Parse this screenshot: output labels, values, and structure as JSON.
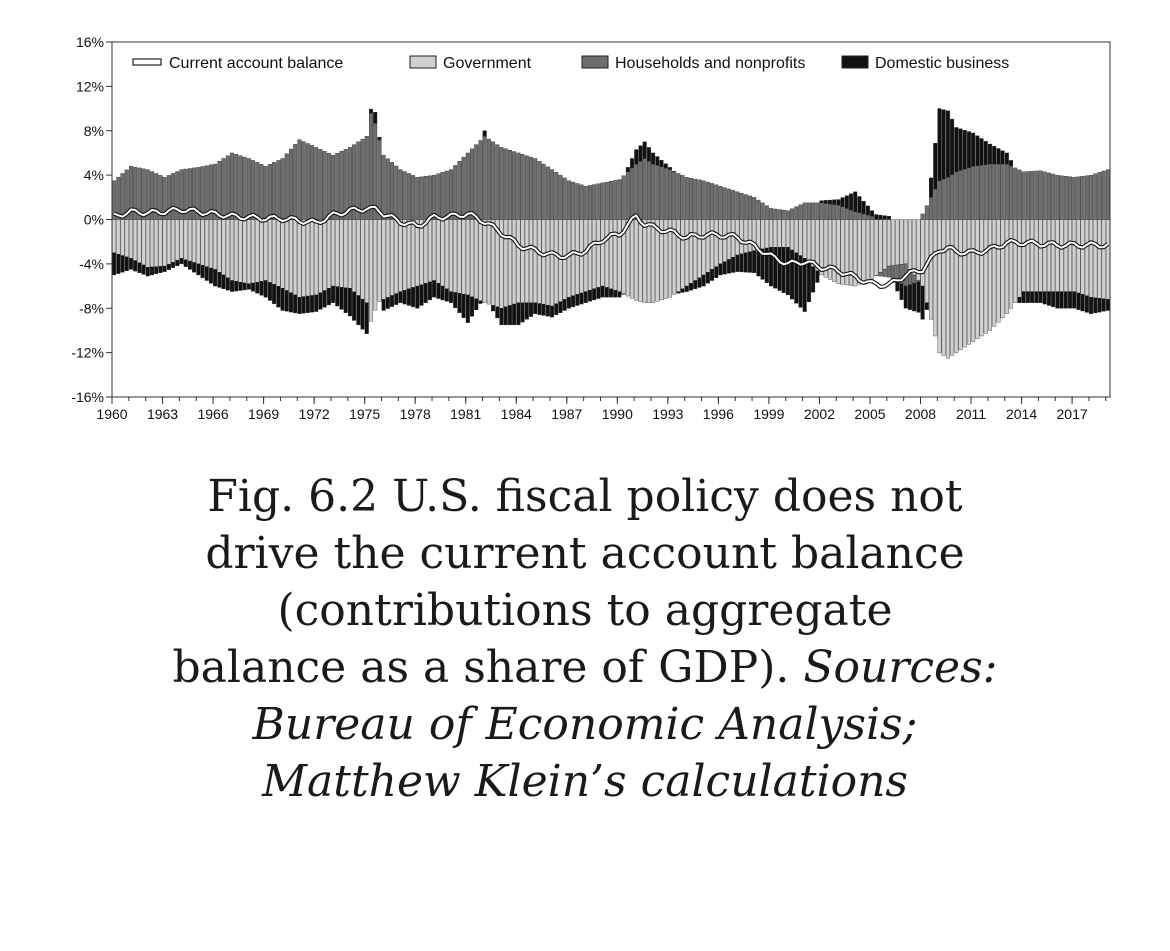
{
  "chart_data": {
    "type": "bar",
    "stacked": true,
    "ylim": [
      -16,
      16
    ],
    "xlim": [
      1960,
      2019.25
    ],
    "y_ticks": [
      "16%",
      "12%",
      "8%",
      "4%",
      "0%",
      "-4%",
      "-8%",
      "-12%",
      "-16%"
    ],
    "y_tick_values": [
      16,
      12,
      8,
      4,
      0,
      -4,
      -8,
      -12,
      -16
    ],
    "x_ticks": [
      "1960",
      "1963",
      "1966",
      "1969",
      "1972",
      "1975",
      "1978",
      "1981",
      "1984",
      "1987",
      "1990",
      "1993",
      "1996",
      "1999",
      "2002",
      "2005",
      "2008",
      "2011",
      "2014",
      "2017"
    ],
    "x_tick_values": [
      1960,
      1963,
      1966,
      1969,
      1972,
      1975,
      1978,
      1981,
      1984,
      1987,
      1990,
      1993,
      1996,
      1999,
      2002,
      2005,
      2008,
      2011,
      2014,
      2017
    ],
    "legend_position": "top",
    "legend": [
      {
        "label": "Current account balance",
        "kind": "line",
        "color": "#ffffff"
      },
      {
        "label": "Government",
        "kind": "bar",
        "color": "#d0d0d0"
      },
      {
        "label": "Households and nonprofits",
        "kind": "bar",
        "color": "#6e6e6e"
      },
      {
        "label": "Domestic business",
        "kind": "bar",
        "color": "#111111"
      }
    ],
    "anchors": {
      "years": [
        1960,
        1961,
        1962,
        1963,
        1964,
        1965,
        1966,
        1967,
        1968,
        1969,
        1970,
        1971,
        1972,
        1973,
        1974,
        1975,
        1975.3,
        1975.6,
        1976,
        1977,
        1978,
        1979,
        1980,
        1981,
        1982,
        1983,
        1984,
        1985,
        1986,
        1987,
        1988,
        1989,
        1990,
        1991,
        1991.5,
        1992,
        1993,
        1994,
        1995,
        1996,
        1997,
        1998,
        1999,
        2000,
        2001,
        2002,
        2003,
        2004,
        2005,
        2006,
        2007,
        2008,
        2009,
        2009.5,
        2010,
        2011,
        2012,
        2013,
        2014,
        2015,
        2016,
        2017,
        2018,
        2019
      ],
      "government": [
        -3,
        -3.5,
        -4.3,
        -4.2,
        -3.5,
        -4,
        -4.5,
        -5.5,
        -5.8,
        -5.5,
        -6.2,
        -7,
        -6.8,
        -6,
        -6.2,
        -7.5,
        -9.5,
        -7.5,
        -7.2,
        -6.5,
        -6,
        -5.5,
        -6.5,
        -6.8,
        -7.5,
        -8,
        -7.5,
        -7.5,
        -7.8,
        -7,
        -6.5,
        -6,
        -6.5,
        -7.3,
        -7.5,
        -7.5,
        -7,
        -6,
        -5,
        -4,
        -3.2,
        -2.8,
        -2.5,
        -2.5,
        -3.5,
        -5,
        -5.8,
        -6,
        -5.3,
        -4.2,
        -4,
        -6,
        -12,
        -12.5,
        -12,
        -11,
        -10,
        -8.5,
        -6.5,
        -6.5,
        -6.5,
        -6.5,
        -7,
        -7.2
      ],
      "households": [
        3.5,
        4.8,
        4.5,
        3.8,
        4.5,
        4.7,
        5,
        6,
        5.5,
        4.8,
        5.5,
        7.2,
        6.5,
        5.8,
        6.5,
        7.5,
        10,
        8,
        5.8,
        4.5,
        3.8,
        4,
        4.5,
        6,
        7.5,
        6.5,
        6,
        5.5,
        4.5,
        3.5,
        3,
        3.3,
        3.6,
        5,
        5.5,
        5,
        4.5,
        3.8,
        3.5,
        3,
        2.5,
        2,
        1,
        0.8,
        1.5,
        1.5,
        1.3,
        0.7,
        0.3,
        -1,
        -2,
        0.5,
        3.5,
        3.8,
        4.3,
        4.8,
        5,
        5,
        4.3,
        4.4,
        4,
        3.8,
        4,
        4.5
      ],
      "business": [
        -2,
        -1,
        -0.8,
        -0.5,
        -0.5,
        -1,
        -1.5,
        -1,
        -0.5,
        -1.5,
        -2,
        -1.5,
        -1.5,
        -1.5,
        -2.5,
        -2.8,
        1,
        1,
        -1,
        -1,
        -2,
        -1.5,
        -1,
        -2.5,
        0.5,
        -1.5,
        -2,
        -1,
        -1,
        -1,
        -1,
        -1,
        -0.5,
        1.3,
        1.5,
        1,
        0.2,
        -0.5,
        -1,
        -1,
        -1.5,
        -2,
        -3.5,
        -4.3,
        -4.8,
        0.2,
        0.5,
        1.8,
        0.5,
        0.3,
        -2,
        -3,
        6.5,
        6,
        4,
        3,
        1.8,
        1,
        -1,
        -1,
        -1.5,
        -1.5,
        -1.5,
        -1
      ],
      "current_account": [
        0.3,
        0.7,
        0.6,
        0.7,
        0.9,
        0.7,
        0.5,
        0.3,
        0.2,
        0.1,
        0.1,
        -0.1,
        -0.3,
        0.4,
        0.8,
        1,
        0.9,
        1,
        0.5,
        -0.2,
        -0.6,
        0.2,
        0.3,
        0.5,
        -0.2,
        -1.2,
        -2.3,
        -2.8,
        -3.2,
        -3.3,
        -2.8,
        -1.8,
        -1.3,
        0.3,
        -0.4,
        -0.7,
        -1.1,
        -1.6,
        -1.4,
        -1.4,
        -1.6,
        -2.4,
        -3.3,
        -4,
        -3.8,
        -4.3,
        -4.6,
        -5.2,
        -5.8,
        -5.9,
        -5,
        -4.5,
        -2.7,
        -2.6,
        -2.9,
        -3,
        -2.7,
        -2.1,
        -2.1,
        -2.2,
        -2.3,
        -2.3,
        -2.3,
        -2.3
      ]
    }
  },
  "caption": {
    "line1": "Fig. 6.2 U.S. fiscal policy does not",
    "line2": "drive the current account balance",
    "line3": "(contributions to aggregate",
    "line4_plain": "balance as a share of GDP).",
    "line4_italic": "Sources:",
    "line5": "Bureau of Economic Analysis;",
    "line6": "Matthew Klein’s calculations"
  },
  "colors": {
    "government": "#d0d0d0",
    "households": "#6e6e6e",
    "business": "#111111",
    "current_account": "#ffffff",
    "axis": "#333333"
  }
}
